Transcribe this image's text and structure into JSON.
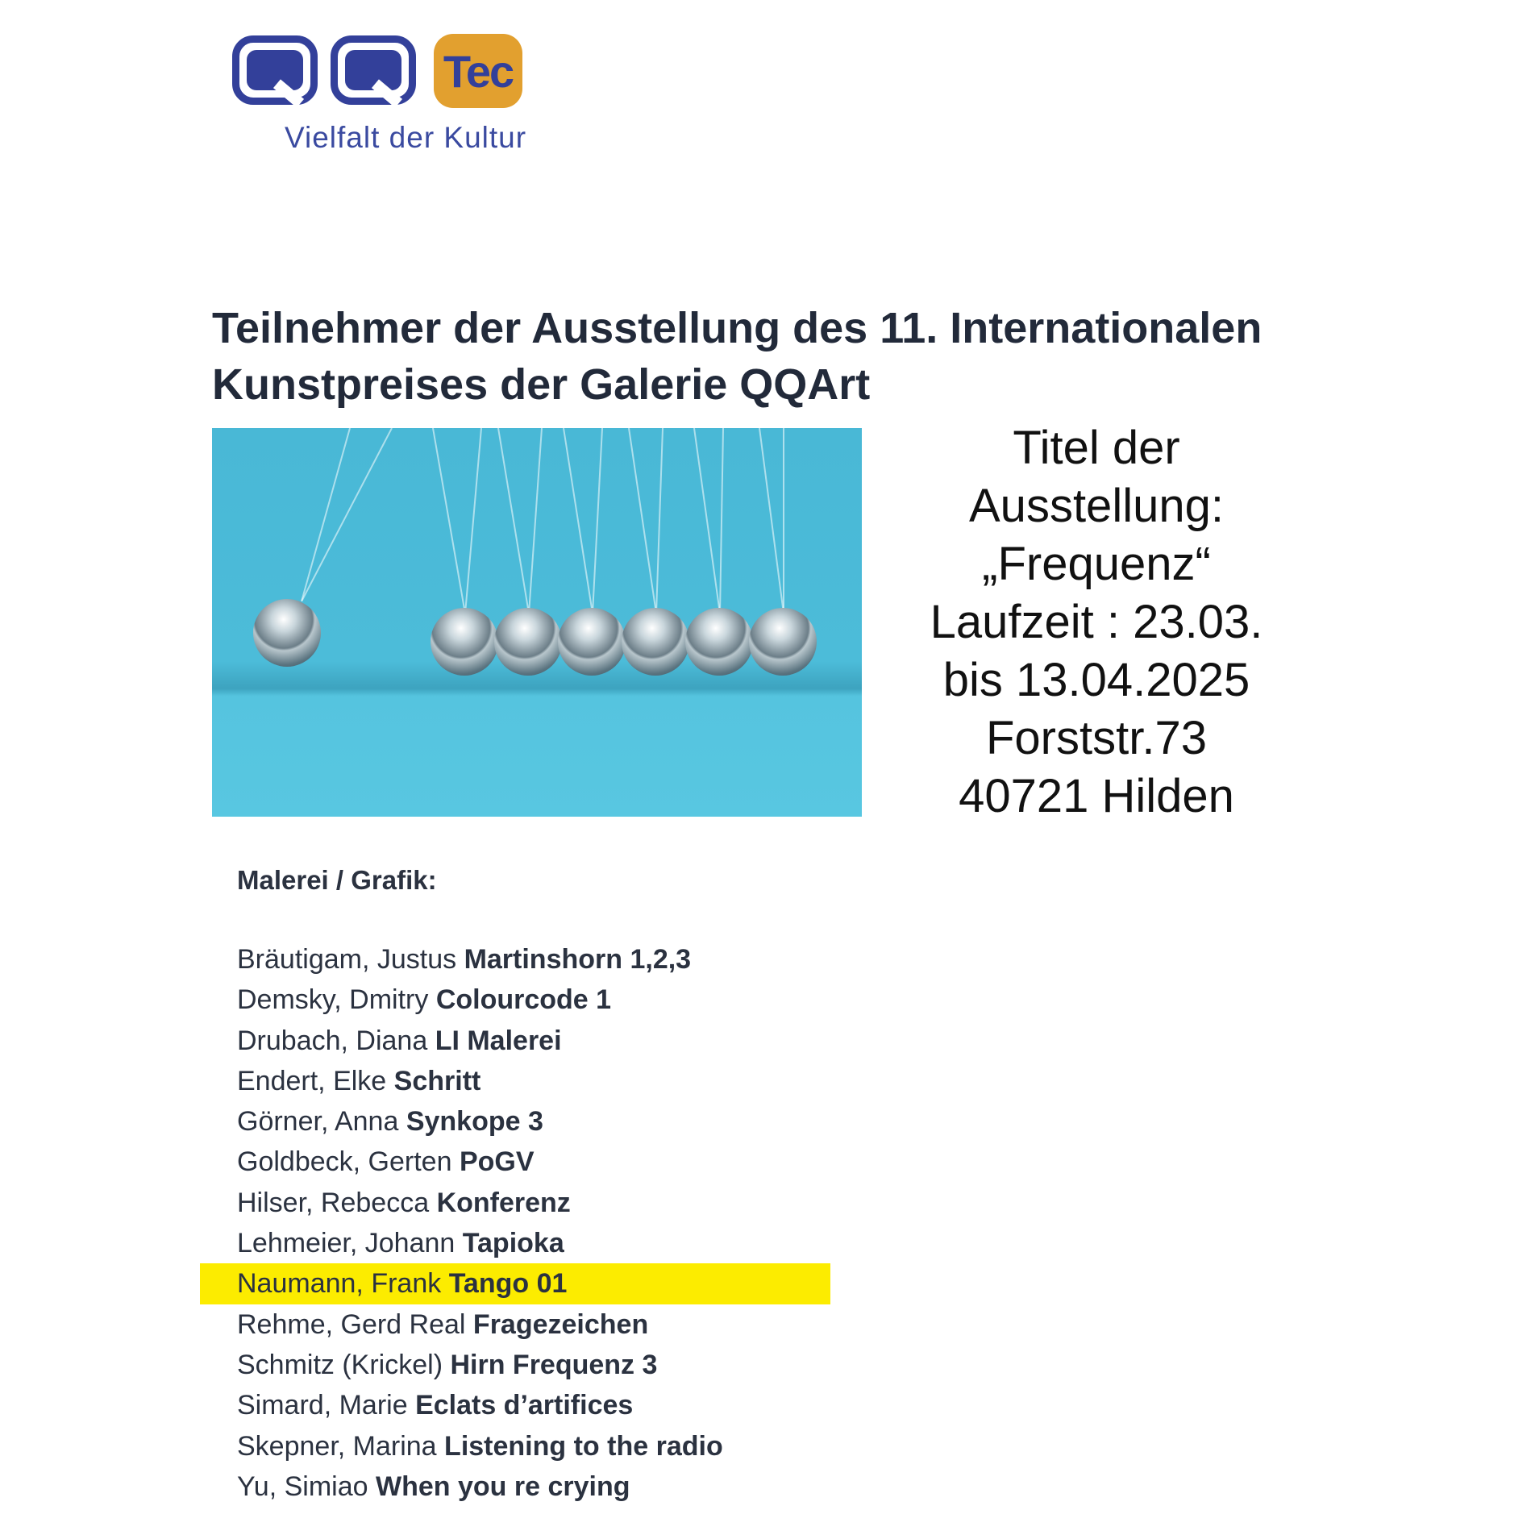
{
  "logo": {
    "brand_text": "QQTec",
    "tec_label": "Tec",
    "slogan": "Vielfalt der Kultur",
    "colors": {
      "blue": "#33409a",
      "orange": "#e2a02f"
    }
  },
  "title": "Teilnehmer der Ausstellung des 11. Internationalen Kunstpreises der Galerie QQArt",
  "info": {
    "lines": [
      "Titel der",
      "Ausstellung:",
      "„Frequenz“",
      "Laufzeit : 23.03.",
      "bis 13.04.2025",
      "Forststr.73",
      "40721 Hilden"
    ]
  },
  "section": {
    "heading": "Malerei / Grafik:"
  },
  "participants": [
    {
      "name": "Bräutigam, Justus",
      "work": "Martinshorn 1,2,3"
    },
    {
      "name": "Demsky, Dmitry",
      "work": "Colourcode 1"
    },
    {
      "name": "Drubach, Diana",
      "work": "LI Malerei"
    },
    {
      "name": "Endert, Elke",
      "work": "Schritt"
    },
    {
      "name": "Görner, Anna",
      "work": "Synkope 3"
    },
    {
      "name": "Goldbeck, Gerten",
      "work": "PoGV"
    },
    {
      "name": "Hilser, Rebecca",
      "work": "Konferenz"
    },
    {
      "name": "Lehmeier, Johann",
      "work": "Tapioka"
    },
    {
      "name": "Naumann, Frank",
      "work": "Tango 01",
      "highlighted": true
    },
    {
      "name": "Rehme, Gerd Real",
      "work": "Fragezeichen"
    },
    {
      "name": "Schmitz (Krickel)",
      "work": "Hirn Frequenz 3"
    },
    {
      "name": "Simard, Marie",
      "work": "Eclats d’artifices"
    },
    {
      "name": "Skepner, Marina",
      "work": "Listening to the radio"
    },
    {
      "name": "Yu, Simiao",
      "work": "When you re crying"
    }
  ],
  "highlight_color": "#fcec00"
}
